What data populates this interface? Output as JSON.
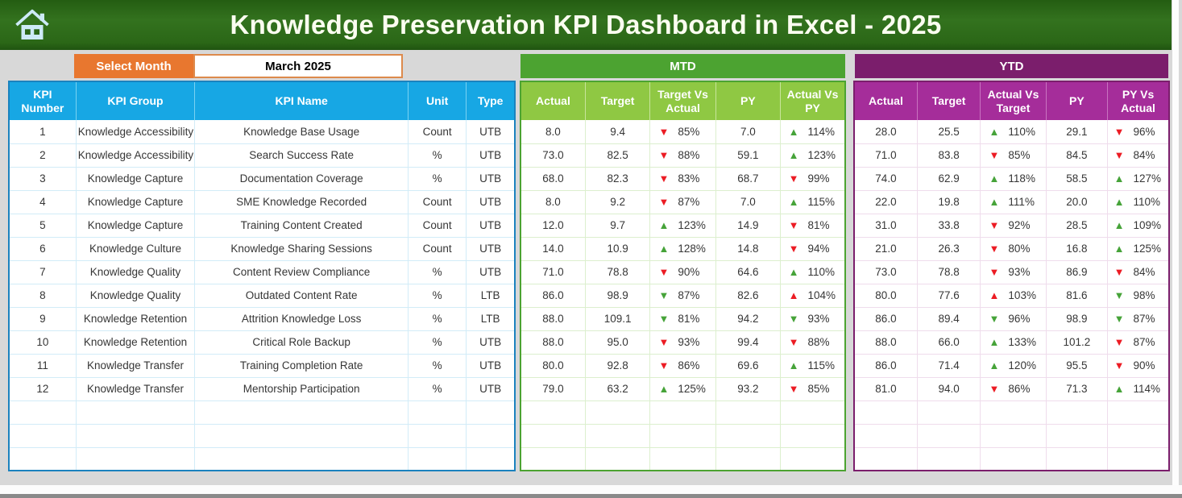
{
  "header": {
    "title": "Knowledge Preservation KPI Dashboard in Excel - 2025"
  },
  "controls": {
    "select_month_label": "Select Month",
    "selected_month": "March 2025"
  },
  "kpi_table": {
    "headers": [
      "KPI Number",
      "KPI Group",
      "KPI Name",
      "Unit",
      "Type"
    ],
    "rows": [
      [
        "1",
        "Knowledge Accessibility",
        "Knowledge Base Usage",
        "Count",
        "UTB"
      ],
      [
        "2",
        "Knowledge Accessibility",
        "Search Success Rate",
        "%",
        "UTB"
      ],
      [
        "3",
        "Knowledge Capture",
        "Documentation Coverage",
        "%",
        "UTB"
      ],
      [
        "4",
        "Knowledge Capture",
        "SME Knowledge Recorded",
        "Count",
        "UTB"
      ],
      [
        "5",
        "Knowledge Capture",
        "Training Content Created",
        "Count",
        "UTB"
      ],
      [
        "6",
        "Knowledge Culture",
        "Knowledge Sharing Sessions",
        "Count",
        "UTB"
      ],
      [
        "7",
        "Knowledge Quality",
        "Content Review Compliance",
        "%",
        "UTB"
      ],
      [
        "8",
        "Knowledge Quality",
        "Outdated Content Rate",
        "%",
        "LTB"
      ],
      [
        "9",
        "Knowledge Retention",
        "Attrition Knowledge Loss",
        "%",
        "LTB"
      ],
      [
        "10",
        "Knowledge Retention",
        "Critical Role Backup",
        "%",
        "UTB"
      ],
      [
        "11",
        "Knowledge Transfer",
        "Training Completion Rate",
        "%",
        "UTB"
      ],
      [
        "12",
        "Knowledge Transfer",
        "Mentorship Participation",
        "%",
        "UTB"
      ]
    ],
    "empty_rows": 3
  },
  "mtd": {
    "banner": "MTD",
    "headers": [
      "Actual",
      "Target",
      "Target Vs Actual",
      "PY",
      "Actual Vs PY"
    ],
    "rows": [
      [
        "8.0",
        "9.4",
        {
          "arrow": "down",
          "color": "red",
          "value": "85%"
        },
        "7.0",
        {
          "arrow": "up",
          "color": "green",
          "value": "114%"
        }
      ],
      [
        "73.0",
        "82.5",
        {
          "arrow": "down",
          "color": "red",
          "value": "88%"
        },
        "59.1",
        {
          "arrow": "up",
          "color": "green",
          "value": "123%"
        }
      ],
      [
        "68.0",
        "82.3",
        {
          "arrow": "down",
          "color": "red",
          "value": "83%"
        },
        "68.7",
        {
          "arrow": "down",
          "color": "red",
          "value": "99%"
        }
      ],
      [
        "8.0",
        "9.2",
        {
          "arrow": "down",
          "color": "red",
          "value": "87%"
        },
        "7.0",
        {
          "arrow": "up",
          "color": "green",
          "value": "115%"
        }
      ],
      [
        "12.0",
        "9.7",
        {
          "arrow": "up",
          "color": "green",
          "value": "123%"
        },
        "14.9",
        {
          "arrow": "down",
          "color": "red",
          "value": "81%"
        }
      ],
      [
        "14.0",
        "10.9",
        {
          "arrow": "up",
          "color": "green",
          "value": "128%"
        },
        "14.8",
        {
          "arrow": "down",
          "color": "red",
          "value": "94%"
        }
      ],
      [
        "71.0",
        "78.8",
        {
          "arrow": "down",
          "color": "red",
          "value": "90%"
        },
        "64.6",
        {
          "arrow": "up",
          "color": "green",
          "value": "110%"
        }
      ],
      [
        "86.0",
        "98.9",
        {
          "arrow": "down",
          "color": "green",
          "value": "87%"
        },
        "82.6",
        {
          "arrow": "up",
          "color": "red",
          "value": "104%"
        }
      ],
      [
        "88.0",
        "109.1",
        {
          "arrow": "down",
          "color": "green",
          "value": "81%"
        },
        "94.2",
        {
          "arrow": "down",
          "color": "green",
          "value": "93%"
        }
      ],
      [
        "88.0",
        "95.0",
        {
          "arrow": "down",
          "color": "red",
          "value": "93%"
        },
        "99.4",
        {
          "arrow": "down",
          "color": "red",
          "value": "88%"
        }
      ],
      [
        "80.0",
        "92.8",
        {
          "arrow": "down",
          "color": "red",
          "value": "86%"
        },
        "69.6",
        {
          "arrow": "up",
          "color": "green",
          "value": "115%"
        }
      ],
      [
        "79.0",
        "63.2",
        {
          "arrow": "up",
          "color": "green",
          "value": "125%"
        },
        "93.2",
        {
          "arrow": "down",
          "color": "red",
          "value": "85%"
        }
      ]
    ],
    "empty_rows": 3
  },
  "ytd": {
    "banner": "YTD",
    "headers": [
      "Actual",
      "Target",
      "Actual Vs Target",
      "PY",
      "PY Vs Actual"
    ],
    "rows": [
      [
        "28.0",
        "25.5",
        {
          "arrow": "up",
          "color": "green",
          "value": "110%"
        },
        "29.1",
        {
          "arrow": "down",
          "color": "red",
          "value": "96%"
        }
      ],
      [
        "71.0",
        "83.8",
        {
          "arrow": "down",
          "color": "red",
          "value": "85%"
        },
        "84.5",
        {
          "arrow": "down",
          "color": "red",
          "value": "84%"
        }
      ],
      [
        "74.0",
        "62.9",
        {
          "arrow": "up",
          "color": "green",
          "value": "118%"
        },
        "58.5",
        {
          "arrow": "up",
          "color": "green",
          "value": "127%"
        }
      ],
      [
        "22.0",
        "19.8",
        {
          "arrow": "up",
          "color": "green",
          "value": "111%"
        },
        "20.0",
        {
          "arrow": "up",
          "color": "green",
          "value": "110%"
        }
      ],
      [
        "31.0",
        "33.8",
        {
          "arrow": "down",
          "color": "red",
          "value": "92%"
        },
        "28.5",
        {
          "arrow": "up",
          "color": "green",
          "value": "109%"
        }
      ],
      [
        "21.0",
        "26.3",
        {
          "arrow": "down",
          "color": "red",
          "value": "80%"
        },
        "16.8",
        {
          "arrow": "up",
          "color": "green",
          "value": "125%"
        }
      ],
      [
        "73.0",
        "78.8",
        {
          "arrow": "down",
          "color": "red",
          "value": "93%"
        },
        "86.9",
        {
          "arrow": "down",
          "color": "red",
          "value": "84%"
        }
      ],
      [
        "80.0",
        "77.6",
        {
          "arrow": "up",
          "color": "red",
          "value": "103%"
        },
        "81.6",
        {
          "arrow": "down",
          "color": "green",
          "value": "98%"
        }
      ],
      [
        "86.0",
        "89.4",
        {
          "arrow": "down",
          "color": "green",
          "value": "96%"
        },
        "98.9",
        {
          "arrow": "down",
          "color": "green",
          "value": "87%"
        }
      ],
      [
        "88.0",
        "66.0",
        {
          "arrow": "up",
          "color": "green",
          "value": "133%"
        },
        "101.2",
        {
          "arrow": "down",
          "color": "red",
          "value": "87%"
        }
      ],
      [
        "86.0",
        "71.4",
        {
          "arrow": "up",
          "color": "green",
          "value": "120%"
        },
        "95.5",
        {
          "arrow": "down",
          "color": "red",
          "value": "90%"
        }
      ],
      [
        "81.0",
        "94.0",
        {
          "arrow": "down",
          "color": "red",
          "value": "86%"
        },
        "71.3",
        {
          "arrow": "up",
          "color": "green",
          "value": "114%"
        }
      ]
    ],
    "empty_rows": 3
  },
  "icons": {
    "home": "home-icon",
    "up_arrow": "up-arrow-icon",
    "down_arrow": "down-arrow-icon"
  },
  "colors": {
    "header_green": "#2E6B1B",
    "accent_orange": "#E8772F",
    "kpi_header_blue": "#17A7E4",
    "kpi_border_blue": "#1B82BE",
    "mtd_banner_green": "#4CA331",
    "mtd_header_green": "#8FC843",
    "ytd_banner_purple": "#7B1E6C",
    "ytd_header_magenta": "#A52D9A",
    "arrow_red": "#EC1C24",
    "arrow_green": "#46A339"
  }
}
